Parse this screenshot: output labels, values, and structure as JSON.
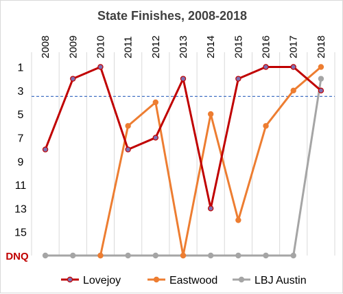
{
  "chart_data": {
    "type": "line",
    "title": "State Finishes, 2008-2018",
    "x": [
      "2008",
      "2009",
      "2010",
      "2011",
      "2012",
      "2013",
      "2014",
      "2015",
      "2016",
      "2017",
      "2018"
    ],
    "y_ticks": [
      "1",
      "3",
      "5",
      "7",
      "9",
      "11",
      "13",
      "15"
    ],
    "y_dnq_label": "DNQ",
    "y_dnq_value": 17,
    "y_reversed": true,
    "ylim": [
      0,
      17
    ],
    "reference_line": {
      "y": 3.5,
      "style": "dashed",
      "color": "#4472c4"
    },
    "grid": "vertical",
    "legend_position": "bottom",
    "series": [
      {
        "name": "Lovejoy",
        "color": "#c00000",
        "marker_color": "#7f6fb0",
        "values": [
          8,
          2,
          1,
          8,
          7,
          2,
          13,
          2,
          1,
          1,
          3
        ]
      },
      {
        "name": "Eastwood",
        "color": "#ed7d31",
        "marker_color": "#ed7d31",
        "values": [
          null,
          null,
          17,
          6,
          4,
          17,
          5,
          14,
          6,
          3,
          1
        ]
      },
      {
        "name": "LBJ Austin",
        "color": "#a5a5a5",
        "marker_color": "#a5a5a5",
        "values": [
          17,
          17,
          17,
          17,
          17,
          17,
          17,
          17,
          17,
          17,
          2
        ]
      }
    ],
    "colors": {
      "dnq_label": "#c00000",
      "title": "#404040"
    }
  }
}
